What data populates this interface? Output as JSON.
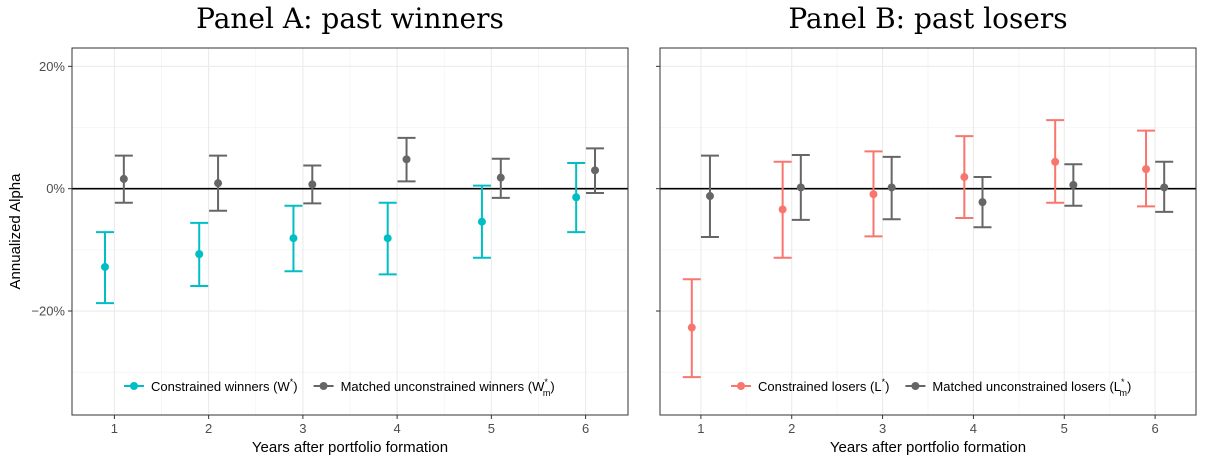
{
  "chart_data": [
    {
      "type": "scatter",
      "title": "Panel A: past winners",
      "xlabel": "Years after portfolio formation",
      "ylabel": "Annualized Alpha",
      "x": [
        1,
        2,
        3,
        4,
        5,
        6
      ],
      "x_ticks": [
        "1",
        "2",
        "3",
        "4",
        "5",
        "6"
      ],
      "y_ticks": [
        {
          "value": -20,
          "label": "−20%"
        },
        {
          "value": 0,
          "label": "0%"
        },
        {
          "value": 20,
          "label": "20%"
        }
      ],
      "ylim": [
        -37,
        23
      ],
      "grid": true,
      "reference_line": 0,
      "legend_position": "bottom-right",
      "series": [
        {
          "name_main": "Constrained winners (W",
          "name_sup": "*",
          "name_sub": "",
          "name_end": ")",
          "color": "#00BFC4",
          "estimate": [
            -12.8,
            -10.7,
            -8.1,
            -8.1,
            -5.4,
            -1.4
          ],
          "lower": [
            -18.7,
            -15.9,
            -13.5,
            -14.0,
            -11.3,
            -7.1
          ],
          "upper": [
            -7.1,
            -5.6,
            -2.8,
            -2.3,
            0.5,
            4.2
          ]
        },
        {
          "name_main": "Matched unconstrained winners (W",
          "name_sup": "*",
          "name_sub": "m",
          "name_end": ")",
          "color": "#666666",
          "estimate": [
            1.6,
            0.9,
            0.7,
            4.8,
            1.8,
            3.0
          ],
          "lower": [
            -2.3,
            -3.6,
            -2.4,
            1.2,
            -1.5,
            -0.7
          ],
          "upper": [
            5.4,
            5.4,
            3.8,
            8.3,
            4.9,
            6.6
          ]
        }
      ]
    },
    {
      "type": "scatter",
      "title": "Panel B: past losers",
      "xlabel": "Years after portfolio formation",
      "ylabel": "",
      "x": [
        1,
        2,
        3,
        4,
        5,
        6
      ],
      "x_ticks": [
        "1",
        "2",
        "3",
        "4",
        "5",
        "6"
      ],
      "ylim": [
        -37,
        23
      ],
      "grid": true,
      "reference_line": 0,
      "legend_position": "bottom-right",
      "series": [
        {
          "name_main": "Constrained losers (L",
          "name_sup": "*",
          "name_sub": "",
          "name_end": ")",
          "color": "#F8766D",
          "estimate": [
            -22.7,
            -3.4,
            -0.9,
            1.9,
            4.4,
            3.2
          ],
          "lower": [
            -30.8,
            -11.3,
            -7.8,
            -4.8,
            -2.3,
            -2.9
          ],
          "upper": [
            -14.8,
            4.4,
            6.1,
            8.6,
            11.2,
            9.5
          ]
        },
        {
          "name_main": "Matched unconstrained losers (L",
          "name_sup": "*",
          "name_sub": "m",
          "name_end": ")",
          "color": "#666666",
          "estimate": [
            -1.2,
            0.2,
            0.2,
            -2.2,
            0.6,
            0.2
          ],
          "lower": [
            -7.9,
            -5.1,
            -5.0,
            -6.3,
            -2.8,
            -3.8
          ],
          "upper": [
            5.4,
            5.5,
            5.2,
            1.9,
            4.0,
            4.4
          ]
        }
      ]
    }
  ]
}
